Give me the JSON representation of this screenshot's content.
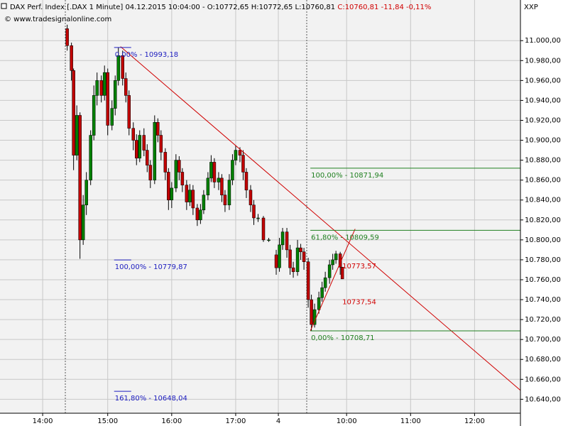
{
  "chart_data": {
    "type": "candlestick",
    "title": "DAX Perf. Index [.DAX  1 Minute] 04.12.2015 10:04:00 - O:10772,65 H:10772,65 L:10760,81",
    "title_change": "C:10760,81 -11,84 -0,11%",
    "subtitle": "© www.tradesignalonline.com",
    "axis_label": "XXP",
    "up_color": "#008000",
    "down_color": "#c00000",
    "grid": true,
    "xlim": [
      0,
      488
    ],
    "ylim": [
      10626,
      11040.8
    ],
    "xticks": [
      {
        "value": 40,
        "label": "14:00"
      },
      {
        "value": 101,
        "label": "15:00"
      },
      {
        "value": 161,
        "label": "16:00"
      },
      {
        "value": 221,
        "label": "17:00"
      },
      {
        "value": 261,
        "label": "4"
      },
      {
        "value": 325,
        "label": "10:00"
      },
      {
        "value": 385,
        "label": "11:00"
      },
      {
        "value": 445,
        "label": "12:00"
      }
    ],
    "yticks": [
      {
        "value": 10640,
        "label": "10.640,00"
      },
      {
        "value": 10660,
        "label": "10.660,00"
      },
      {
        "value": 10680,
        "label": "10.680,00"
      },
      {
        "value": 10700,
        "label": "10.700,00"
      },
      {
        "value": 10720,
        "label": "10.720,00"
      },
      {
        "value": 10740,
        "label": "10.740,00"
      },
      {
        "value": 10760,
        "label": "10.760,00"
      },
      {
        "value": 10780,
        "label": "10.780,00"
      },
      {
        "value": 10800,
        "label": "10.800,00"
      },
      {
        "value": 10820,
        "label": "10.820,00"
      },
      {
        "value": 10840,
        "label": "10.840,00"
      },
      {
        "value": 10860,
        "label": "10.860,00"
      },
      {
        "value": 10880,
        "label": "10.880,00"
      },
      {
        "value": 10900,
        "label": "10.900,00"
      },
      {
        "value": 10920,
        "label": "10.920,00"
      },
      {
        "value": 10940,
        "label": "10.940,00"
      },
      {
        "value": 10960,
        "label": "10.960,00"
      },
      {
        "value": 10980,
        "label": "10.980,00"
      },
      {
        "value": 11000,
        "label": "11.000,00"
      }
    ],
    "x": [
      63,
      67,
      69,
      72,
      75,
      78,
      81,
      85,
      88,
      91,
      95,
      98,
      101,
      105,
      108,
      111,
      115,
      118,
      121,
      125,
      128,
      131,
      135,
      138,
      141,
      145,
      148,
      151,
      155,
      158,
      161,
      165,
      168,
      171,
      175,
      178,
      181,
      185,
      188,
      191,
      195,
      198,
      201,
      205,
      208,
      211,
      215,
      218,
      221,
      225,
      228,
      231,
      235,
      238,
      242,
      247,
      252,
      259,
      262,
      265,
      269,
      272,
      275,
      279,
      282,
      285,
      289,
      292,
      295,
      299,
      302,
      305,
      309,
      312,
      315,
      319,
      321
    ],
    "open": [
      11012,
      10995,
      10970,
      10885,
      10925,
      10800,
      10835,
      10860,
      10905,
      10945,
      10960,
      10945,
      10968,
      10915,
      10932,
      10960,
      10985,
      10962,
      10945,
      10912,
      10900,
      10882,
      10905,
      10890,
      10875,
      10860,
      10918,
      10905,
      10888,
      10868,
      10840,
      10852,
      10880,
      10868,
      10855,
      10838,
      10850,
      10832,
      10820,
      10830,
      10845,
      10862,
      10878,
      10858,
      10862,
      10845,
      10835,
      10860,
      10880,
      10890,
      10885,
      10868,
      10850,
      10835,
      10822,
      10822,
      10800,
      10785,
      10772,
      10795,
      10808,
      10790,
      10772,
      10768,
      10792,
      10788,
      10778,
      10740,
      10715,
      10730,
      10742,
      10752,
      10762,
      10775,
      10780,
      10786,
      10772.65
    ],
    "high": [
      11016,
      10998,
      10972,
      10935,
      10928,
      10845,
      10868,
      10910,
      10955,
      10968,
      10965,
      10975,
      10972,
      10940,
      10965,
      10993.18,
      10990,
      10968,
      10950,
      10918,
      10906,
      10910,
      10912,
      10896,
      10880,
      10925,
      10922,
      10910,
      10892,
      10872,
      10858,
      10886,
      10884,
      10872,
      10860,
      10856,
      10855,
      10836,
      10836,
      10850,
      10868,
      10885,
      10882,
      10868,
      10866,
      10850,
      10866,
      10886,
      10895,
      10893,
      10890,
      10872,
      10855,
      10840,
      10826,
      10824,
      10802,
      10790,
      10802,
      10812,
      10812,
      10795,
      10778,
      10800,
      10796,
      10792,
      10782,
      10745,
      10736,
      10748,
      10758,
      10768,
      10780,
      10786,
      10789,
      10788,
      10772.65
    ],
    "low": [
      10990,
      10960,
      10870,
      10880,
      10781,
      10795,
      10825,
      10855,
      10900,
      10935,
      10938,
      10940,
      10905,
      10910,
      10925,
      10955,
      10955,
      10938,
      10905,
      10890,
      10875,
      10878,
      10884,
      10868,
      10852,
      10856,
      10898,
      10880,
      10860,
      10830,
      10832,
      10848,
      10860,
      10848,
      10830,
      10834,
      10825,
      10814,
      10816,
      10826,
      10840,
      10858,
      10852,
      10850,
      10838,
      10828,
      10830,
      10855,
      10875,
      10878,
      10860,
      10842,
      10828,
      10815,
      10818,
      10798,
      10798,
      10765,
      10768,
      10790,
      10782,
      10765,
      10762,
      10764,
      10780,
      10770,
      10732,
      10708.71,
      10712,
      10726,
      10738,
      10748,
      10756,
      10770,
      10776,
      10765,
      10760.81
    ],
    "close": [
      10995,
      10970,
      10885,
      10925,
      10800,
      10835,
      10860,
      10905,
      10945,
      10960,
      10945,
      10968,
      10915,
      10932,
      10960,
      10985,
      10962,
      10945,
      10912,
      10900,
      10882,
      10905,
      10890,
      10875,
      10860,
      10918,
      10905,
      10888,
      10868,
      10840,
      10852,
      10880,
      10868,
      10855,
      10838,
      10850,
      10832,
      10820,
      10830,
      10845,
      10862,
      10878,
      10858,
      10862,
      10845,
      10835,
      10860,
      10880,
      10890,
      10885,
      10868,
      10850,
      10835,
      10822,
      10822,
      10800,
      10800,
      10772,
      10795,
      10808,
      10790,
      10772,
      10768,
      10792,
      10788,
      10778,
      10740,
      10715,
      10730,
      10742,
      10752,
      10762,
      10775,
      10780,
      10786,
      10772.65,
      10760.81
    ],
    "trendlines": [
      {
        "color": "#d00000",
        "x": [
          113,
          488
        ],
        "y": [
          10994,
          10649
        ]
      },
      {
        "color": "#d00000",
        "x": [
          291,
          333
        ],
        "y": [
          10708.71,
          10811
        ]
      }
    ],
    "levels": [
      {
        "value": 10993.18,
        "label": "0,00% - 10993,18",
        "color": "#2020c0",
        "x": [
          107,
          123
        ]
      },
      {
        "value": 10779.87,
        "label": "100,00% - 10779,87",
        "color": "#2020c0",
        "x": [
          107,
          123
        ]
      },
      {
        "value": 10648.04,
        "label": "161,80% - 10648,04",
        "color": "#2020c0",
        "x": [
          107,
          123
        ]
      },
      {
        "value": 10871.94,
        "label": "100,00% - 10871,94",
        "color": "#208020",
        "x": [
          291,
          488
        ]
      },
      {
        "value": 10809.59,
        "label": "61,80% - 10809,59",
        "color": "#208020",
        "x": [
          291,
          488
        ]
      },
      {
        "value": 10708.71,
        "label": "0,00% - 10708,71",
        "color": "#208020",
        "x": [
          291,
          488
        ]
      }
    ],
    "price_labels": [
      {
        "value": 10773.57,
        "label": "10773,57",
        "color": "#d00000",
        "x": 321
      },
      {
        "value": 10737.54,
        "label": "10737,54",
        "color": "#d00000",
        "x": 321
      }
    ]
  }
}
